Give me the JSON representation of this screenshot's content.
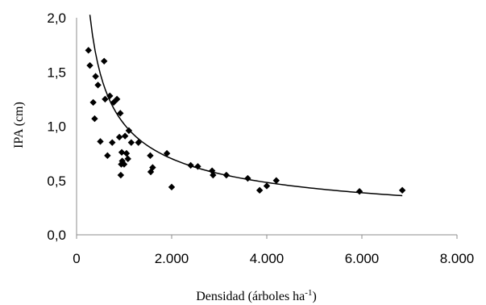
{
  "chart_data": {
    "type": "scatter",
    "xlabel": "Densidad (árboles ha",
    "xlabel_sup": "-1",
    "xlabel_suffix": ")",
    "ylabel": "IPA (cm)",
    "xlim": [
      0,
      8000
    ],
    "ylim": [
      0,
      2.0
    ],
    "x_ticks": [
      0,
      2000,
      4000,
      6000,
      8000
    ],
    "x_tick_labels": [
      "0",
      "2.000",
      "4.000",
      "6.000",
      "8.000"
    ],
    "y_ticks": [
      0,
      0.5,
      1.0,
      1.5,
      2.0
    ],
    "y_tick_labels": [
      "0,0",
      "0,5",
      "1,0",
      "1,5",
      "2,0"
    ],
    "grid": false,
    "legend": "none",
    "marker": "diamond",
    "marker_color": "#000000",
    "points": [
      [
        250,
        1.7
      ],
      [
        280,
        1.56
      ],
      [
        350,
        1.22
      ],
      [
        380,
        1.07
      ],
      [
        400,
        1.46
      ],
      [
        450,
        1.38
      ],
      [
        500,
        0.86
      ],
      [
        580,
        1.6
      ],
      [
        600,
        1.25
      ],
      [
        650,
        0.73
      ],
      [
        700,
        1.28
      ],
      [
        750,
        0.85
      ],
      [
        780,
        1.22
      ],
      [
        850,
        1.25
      ],
      [
        900,
        0.9
      ],
      [
        920,
        1.12
      ],
      [
        930,
        0.55
      ],
      [
        940,
        0.65
      ],
      [
        950,
        0.76
      ],
      [
        960,
        0.68
      ],
      [
        1000,
        0.65
      ],
      [
        1020,
        0.91
      ],
      [
        1050,
        0.75
      ],
      [
        1080,
        0.7
      ],
      [
        1100,
        0.96
      ],
      [
        1150,
        0.85
      ],
      [
        1300,
        0.85
      ],
      [
        1550,
        0.73
      ],
      [
        1560,
        0.58
      ],
      [
        1600,
        0.62
      ],
      [
        1900,
        0.75
      ],
      [
        2000,
        0.44
      ],
      [
        2400,
        0.64
      ],
      [
        2550,
        0.63
      ],
      [
        2850,
        0.59
      ],
      [
        2870,
        0.55
      ],
      [
        3150,
        0.55
      ],
      [
        3600,
        0.52
      ],
      [
        3850,
        0.41
      ],
      [
        4000,
        0.45
      ],
      [
        4200,
        0.5
      ],
      [
        5950,
        0.4
      ],
      [
        6850,
        0.41
      ]
    ],
    "trendline": {
      "type": "power",
      "a": 42.5,
      "b": -0.54,
      "x_range": [
        280,
        6850
      ]
    }
  }
}
